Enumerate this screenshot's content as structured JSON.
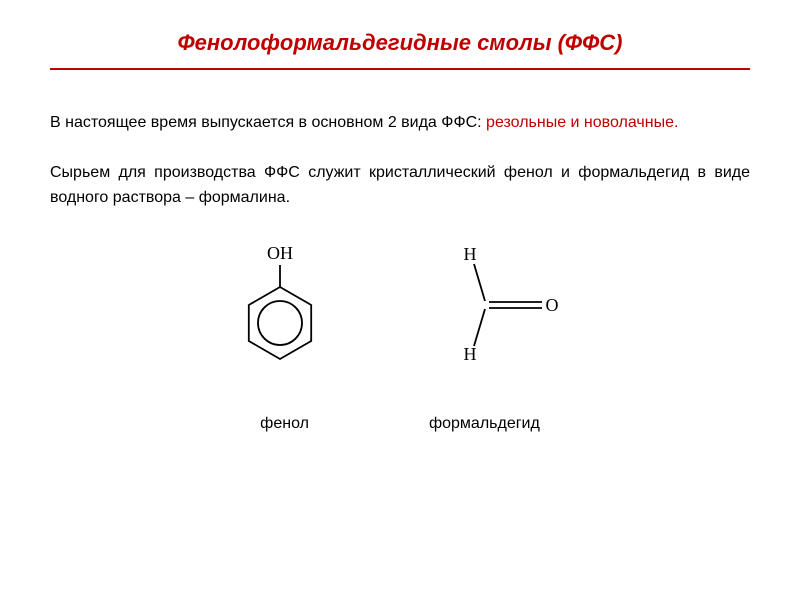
{
  "title": {
    "text": "Фенолоформальдегидные смолы  (ФФС)",
    "color": "#c00000",
    "fontsize": 22,
    "underline_color": "#c00000"
  },
  "paragraph1": {
    "part1": "В настоящее время  выпускается в основном  2 вида ФФС: ",
    "part2": "резольные и новолачные.",
    "color_main": "#000000",
    "color_highlight": "#c00000",
    "fontsize": 16
  },
  "paragraph2": {
    "text": "Сырьем для производства ФФС служит кристаллический фенол  и формальдегид в виде водного раствора – формалина.",
    "color": "#000000",
    "fontsize": 16
  },
  "phenol": {
    "oh_label": "OH",
    "structure_label": "фенол",
    "label_fontsize": 16,
    "label_color": "#000000",
    "formula_fontsize": 18,
    "line_color": "#000000",
    "ring_radius_outer": 36,
    "ring_radius_inner": 22
  },
  "formaldehyde": {
    "h_top": "H",
    "h_bottom": "H",
    "o_label": "O",
    "structure_label": "формальдегид",
    "label_fontsize": 16,
    "label_color": "#000000",
    "formula_fontsize": 18,
    "line_color": "#000000"
  },
  "background_color": "#ffffff"
}
